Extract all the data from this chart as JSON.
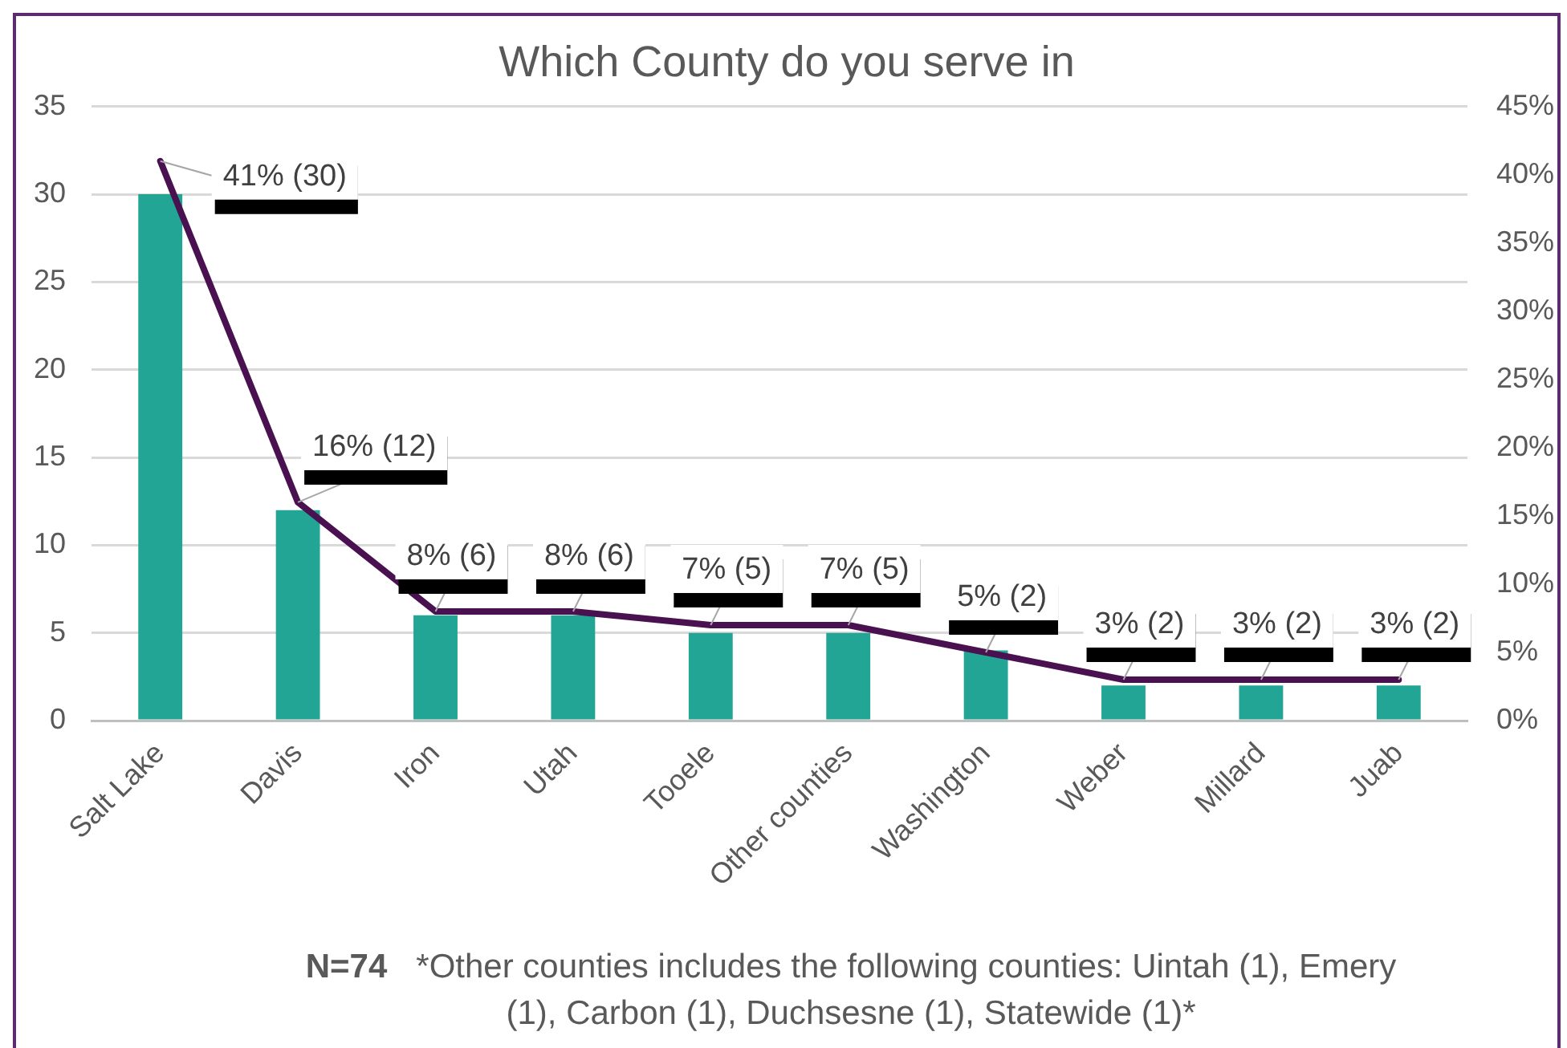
{
  "chart_data": {
    "type": "bar",
    "title": "Which County do you serve in",
    "categories": [
      "Salt Lake",
      "Davis",
      "Iron",
      "Utah",
      "Tooele",
      "Other counties",
      "Washington",
      "Weber",
      "Millard",
      "Juab"
    ],
    "series": [
      {
        "color": "#22a594",
        "values": [
          30,
          12,
          6,
          6,
          5,
          5,
          4,
          2,
          2,
          2
        ]
      },
      {
        "type": "line",
        "axis": "y2",
        "color": "#4a1150",
        "values": [
          41,
          16,
          8,
          8,
          7,
          7,
          5,
          3,
          3,
          3
        ],
        "value_labels": [
          "41% (30)",
          "16% (12)",
          "8% (6)",
          "8% (6)",
          "7% (5)",
          "7% (5)",
          "5% (2)",
          "3% (2)",
          "3% (2)",
          "3% (2)"
        ]
      }
    ],
    "ylim": [
      0,
      35
    ],
    "yticks": [
      0,
      5,
      10,
      15,
      20,
      25,
      30,
      35
    ],
    "y2lim": [
      0,
      45
    ],
    "y2ticks": [
      {
        "value": 0,
        "label": "0%"
      },
      {
        "value": 5,
        "label": "5%"
      },
      {
        "value": 10,
        "label": "10%"
      },
      {
        "value": 15,
        "label": "15%"
      },
      {
        "value": 20,
        "label": "20%"
      },
      {
        "value": 25,
        "label": "25%"
      },
      {
        "value": 30,
        "label": "30%"
      },
      {
        "value": 35,
        "label": "35%"
      },
      {
        "value": 40,
        "label": "40%"
      },
      {
        "value": 45,
        "label": "45%"
      }
    ],
    "grid": "y",
    "annotations": [
      "N=74",
      "*Other counties includes the following counties: Uintah (1), Emery (1), Carbon (1), Duchsesne (1), Statewide (1)*"
    ]
  }
}
